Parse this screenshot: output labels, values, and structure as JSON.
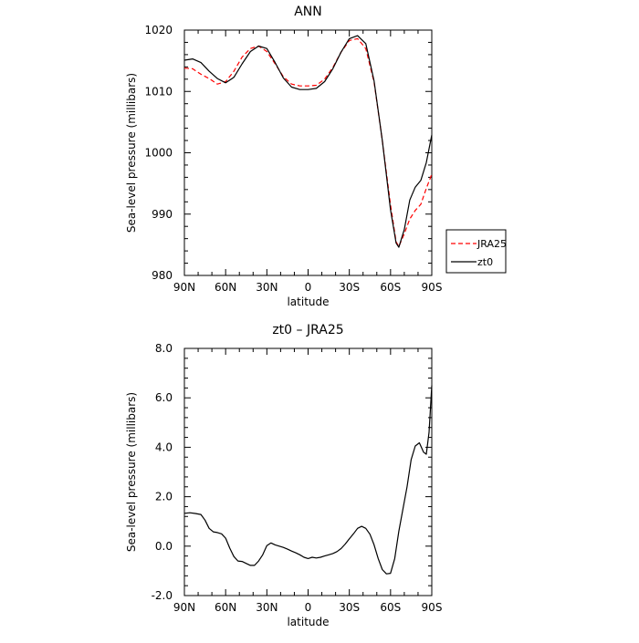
{
  "chart_data": [
    {
      "type": "line",
      "title": "ANN",
      "xlabel": "latitude",
      "ylabel": "Sea-level pressure (millibars)",
      "x_ticks": [
        "90N",
        "60N",
        "30N",
        "0",
        "30S",
        "60S",
        "90S"
      ],
      "x_tick_values": [
        90,
        60,
        30,
        0,
        -30,
        -60,
        -90
      ],
      "xlim": [
        90,
        -90
      ],
      "ylim": [
        980,
        1020
      ],
      "y_ticks": [
        "980",
        "990",
        "1000",
        "1010",
        "1020"
      ],
      "y_tick_values": [
        980,
        990,
        1000,
        1010,
        1020
      ],
      "legend_position": "right",
      "series": [
        {
          "name": "JRA25",
          "color": "#ff0000",
          "style": "dashed",
          "x": [
            90,
            84,
            78,
            72,
            66,
            60,
            54,
            48,
            42,
            36,
            30,
            24,
            18,
            12,
            6,
            0,
            -6,
            -12,
            -18,
            -24,
            -30,
            -36,
            -42,
            -48,
            -54,
            -60,
            -64,
            -66,
            -70,
            -74,
            -78,
            -82,
            -86,
            -90
          ],
          "y": [
            1013.8,
            1013.7,
            1012.8,
            1012.1,
            1011.2,
            1011.6,
            1013.3,
            1015.6,
            1017.0,
            1017.4,
            1016.5,
            1014.5,
            1012.4,
            1011.2,
            1010.9,
            1010.9,
            1011.0,
            1012.0,
            1013.9,
            1016.4,
            1018.3,
            1018.6,
            1017.0,
            1011.5,
            1002.0,
            991.5,
            985.5,
            984.7,
            986.8,
            989.2,
            990.6,
            991.6,
            994.2,
            996.5
          ]
        },
        {
          "name": "zt0",
          "color": "#000000",
          "style": "solid",
          "x": [
            90,
            84,
            78,
            72,
            66,
            60,
            54,
            48,
            42,
            36,
            30,
            24,
            18,
            12,
            6,
            0,
            -6,
            -12,
            -18,
            -24,
            -30,
            -36,
            -42,
            -48,
            -54,
            -60,
            -64,
            -66,
            -70,
            -74,
            -78,
            -82,
            -86,
            -90
          ],
          "y": [
            1015.1,
            1015.3,
            1014.7,
            1013.3,
            1012.1,
            1011.4,
            1012.3,
            1014.5,
            1016.5,
            1017.4,
            1017.0,
            1014.7,
            1012.2,
            1010.7,
            1010.3,
            1010.3,
            1010.5,
            1011.6,
            1013.7,
            1016.4,
            1018.6,
            1019.1,
            1017.8,
            1011.7,
            1002.0,
            990.7,
            985.3,
            984.6,
            987.5,
            992.3,
            994.4,
            995.5,
            998.4,
            1002.9
          ]
        }
      ]
    },
    {
      "type": "line",
      "title": "zt0 – JRA25",
      "xlabel": "latitude",
      "ylabel": "Sea-level pressure (millibars)",
      "x_ticks": [
        "90N",
        "60N",
        "30N",
        "0",
        "30S",
        "60S",
        "90S"
      ],
      "x_tick_values": [
        90,
        60,
        30,
        0,
        -30,
        -60,
        -90
      ],
      "xlim": [
        90,
        -90
      ],
      "ylim": [
        -2.0,
        8.0
      ],
      "y_ticks": [
        "-2.0",
        "0.0",
        "2.0",
        "4.0",
        "6.0",
        "8.0"
      ],
      "y_tick_values": [
        -2,
        0,
        2,
        4,
        6,
        8
      ],
      "series": [
        {
          "color": "#000000",
          "style": "solid",
          "x": [
            90,
            86,
            82,
            78,
            75,
            72,
            69,
            66,
            63,
            60,
            57,
            54,
            51,
            48,
            45,
            42,
            39,
            36,
            33,
            30,
            27,
            24,
            21,
            18,
            15,
            12,
            9,
            6,
            3,
            0,
            -3,
            -6,
            -9,
            -12,
            -15,
            -18,
            -21,
            -24,
            -27,
            -30,
            -33,
            -36,
            -39,
            -42,
            -45,
            -48,
            -51,
            -54,
            -57,
            -60,
            -63,
            -66,
            -69,
            -72,
            -75,
            -78,
            -81,
            -84,
            -86,
            -88,
            -90
          ],
          "y": [
            1.33,
            1.35,
            1.32,
            1.28,
            1.05,
            0.72,
            0.58,
            0.55,
            0.5,
            0.32,
            -0.08,
            -0.42,
            -0.6,
            -0.62,
            -0.7,
            -0.78,
            -0.78,
            -0.6,
            -0.35,
            0.02,
            0.13,
            0.05,
            0.0,
            -0.05,
            -0.12,
            -0.2,
            -0.27,
            -0.35,
            -0.45,
            -0.5,
            -0.45,
            -0.48,
            -0.45,
            -0.4,
            -0.35,
            -0.3,
            -0.22,
            -0.1,
            0.08,
            0.3,
            0.5,
            0.72,
            0.8,
            0.72,
            0.48,
            0.05,
            -0.5,
            -0.95,
            -1.12,
            -1.1,
            -0.5,
            0.6,
            1.5,
            2.4,
            3.5,
            4.05,
            4.18,
            3.8,
            3.72,
            4.6,
            6.5
          ]
        }
      ]
    }
  ]
}
